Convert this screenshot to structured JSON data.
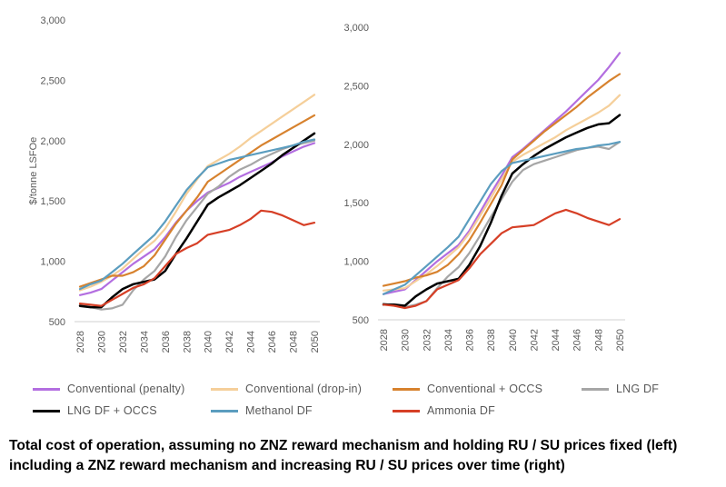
{
  "series_meta": [
    {
      "name": "Conventional (penalty)",
      "color": "#b36ee0"
    },
    {
      "name": "Conventional (drop-in)",
      "color": "#f5cf9a"
    },
    {
      "name": "Conventional + OCCS",
      "color": "#d7822e"
    },
    {
      "name": "LNG DF",
      "color": "#a6a6a6"
    },
    {
      "name": "LNG DF + OCCS",
      "color": "#000000"
    },
    {
      "name": "Methanol DF",
      "color": "#5b9dbf"
    },
    {
      "name": "Ammonia DF",
      "color": "#d63f26"
    }
  ],
  "chart_data": [
    {
      "type": "line",
      "title": "",
      "xlabel": "",
      "ylabel": "$/tonne LSFOe",
      "ylim": [
        500,
        3000
      ],
      "yticks": [
        500,
        1000,
        1500,
        2000,
        2500,
        3000
      ],
      "ytick_labels": [
        "500",
        "1,000",
        "1,500",
        "2,000",
        "2,500",
        "3,000"
      ],
      "x": [
        2028,
        2029,
        2030,
        2031,
        2032,
        2033,
        2034,
        2035,
        2036,
        2037,
        2038,
        2039,
        2040,
        2041,
        2042,
        2043,
        2044,
        2045,
        2046,
        2047,
        2048,
        2049,
        2050
      ],
      "xtick_labels": [
        "2028",
        "2030",
        "2032",
        "2034",
        "2036",
        "2038",
        "2040",
        "2042",
        "2044",
        "2046",
        "2048",
        "2050"
      ],
      "grid": false,
      "series": [
        {
          "name": "Conventional (penalty)",
          "values": [
            720,
            740,
            770,
            840,
            910,
            980,
            1040,
            1100,
            1200,
            1320,
            1420,
            1500,
            1570,
            1610,
            1650,
            1700,
            1740,
            1780,
            1820,
            1870,
            1910,
            1950,
            1980
          ]
        },
        {
          "name": "Conventional (drop-in)",
          "values": [
            760,
            790,
            830,
            880,
            940,
            1020,
            1100,
            1170,
            1270,
            1410,
            1560,
            1680,
            1790,
            1840,
            1890,
            1950,
            2020,
            2080,
            2140,
            2200,
            2260,
            2320,
            2380
          ]
        },
        {
          "name": "Conventional + OCCS",
          "values": [
            790,
            820,
            850,
            880,
            880,
            910,
            960,
            1050,
            1180,
            1310,
            1420,
            1530,
            1660,
            1720,
            1780,
            1840,
            1900,
            1960,
            2010,
            2060,
            2110,
            2160,
            2210
          ]
        },
        {
          "name": "LNG DF",
          "values": [
            640,
            620,
            600,
            610,
            640,
            760,
            850,
            920,
            1040,
            1200,
            1340,
            1450,
            1560,
            1620,
            1700,
            1760,
            1800,
            1850,
            1890,
            1930,
            1960,
            1980,
            2000
          ]
        },
        {
          "name": "LNG DF + OCCS",
          "values": [
            630,
            620,
            620,
            700,
            770,
            810,
            830,
            850,
            920,
            1060,
            1190,
            1330,
            1470,
            1530,
            1580,
            1630,
            1690,
            1750,
            1810,
            1880,
            1940,
            2000,
            2060
          ]
        },
        {
          "name": "Methanol DF",
          "values": [
            770,
            810,
            840,
            910,
            980,
            1060,
            1140,
            1220,
            1330,
            1460,
            1590,
            1690,
            1780,
            1810,
            1840,
            1860,
            1880,
            1900,
            1920,
            1940,
            1960,
            1990,
            2010
          ]
        },
        {
          "name": "Ammonia DF",
          "values": [
            650,
            640,
            630,
            680,
            730,
            780,
            810,
            860,
            960,
            1060,
            1110,
            1150,
            1220,
            1240,
            1260,
            1300,
            1350,
            1420,
            1410,
            1380,
            1340,
            1300,
            1320
          ]
        }
      ]
    },
    {
      "type": "line",
      "title": "",
      "xlabel": "",
      "ylabel": "",
      "ylim": [
        500,
        3000
      ],
      "yticks": [
        500,
        1000,
        1500,
        2000,
        2500,
        3000
      ],
      "ytick_labels": [
        "500",
        "1,000",
        "1,500",
        "2,000",
        "2,500",
        "3,000"
      ],
      "x": [
        2028,
        2029,
        2030,
        2031,
        2032,
        2033,
        2034,
        2035,
        2036,
        2037,
        2038,
        2039,
        2040,
        2041,
        2042,
        2043,
        2044,
        2045,
        2046,
        2047,
        2048,
        2049,
        2050
      ],
      "xtick_labels": [
        "2028",
        "2030",
        "2032",
        "2034",
        "2036",
        "2038",
        "2040",
        "2042",
        "2044",
        "2046",
        "2048",
        "2050"
      ],
      "grid": false,
      "series": [
        {
          "name": "Conventional (penalty)",
          "values": [
            720,
            740,
            760,
            840,
            920,
            1000,
            1070,
            1140,
            1260,
            1420,
            1580,
            1730,
            1890,
            1960,
            2040,
            2120,
            2200,
            2280,
            2370,
            2460,
            2550,
            2660,
            2780
          ]
        },
        {
          "name": "Conventional (drop-in)",
          "values": [
            750,
            760,
            770,
            830,
            890,
            960,
            1040,
            1120,
            1240,
            1390,
            1540,
            1700,
            1850,
            1910,
            1960,
            2010,
            2060,
            2120,
            2170,
            2220,
            2270,
            2330,
            2420
          ]
        },
        {
          "name": "Conventional + OCCS",
          "values": [
            790,
            810,
            830,
            860,
            880,
            910,
            970,
            1060,
            1180,
            1330,
            1490,
            1650,
            1870,
            1950,
            2030,
            2110,
            2180,
            2250,
            2320,
            2400,
            2470,
            2540,
            2600
          ]
        },
        {
          "name": "LNG DF",
          "values": [
            640,
            620,
            610,
            630,
            660,
            770,
            870,
            950,
            1070,
            1220,
            1380,
            1530,
            1680,
            1780,
            1830,
            1860,
            1890,
            1920,
            1950,
            1970,
            1980,
            1960,
            2020
          ]
        },
        {
          "name": "LNG DF + OCCS",
          "values": [
            630,
            630,
            620,
            700,
            760,
            810,
            830,
            850,
            970,
            1130,
            1330,
            1560,
            1750,
            1830,
            1900,
            1960,
            2010,
            2060,
            2100,
            2140,
            2170,
            2180,
            2250
          ]
        },
        {
          "name": "Methanol DF",
          "values": [
            720,
            760,
            800,
            880,
            960,
            1040,
            1120,
            1210,
            1360,
            1510,
            1660,
            1770,
            1840,
            1860,
            1880,
            1900,
            1920,
            1940,
            1960,
            1970,
            1990,
            2000,
            2020
          ]
        },
        {
          "name": "Ammonia DF",
          "values": [
            630,
            620,
            600,
            620,
            660,
            760,
            800,
            840,
            940,
            1060,
            1150,
            1240,
            1290,
            1300,
            1310,
            1360,
            1410,
            1440,
            1410,
            1370,
            1340,
            1310,
            1360
          ]
        }
      ]
    }
  ],
  "caption": {
    "line1": "Total cost of operation, assuming no ZNZ reward mechanism and holding RU / SU prices fixed (left)",
    "line2": "including a ZNZ reward mechanism and increasing RU / SU prices over time (right)"
  }
}
